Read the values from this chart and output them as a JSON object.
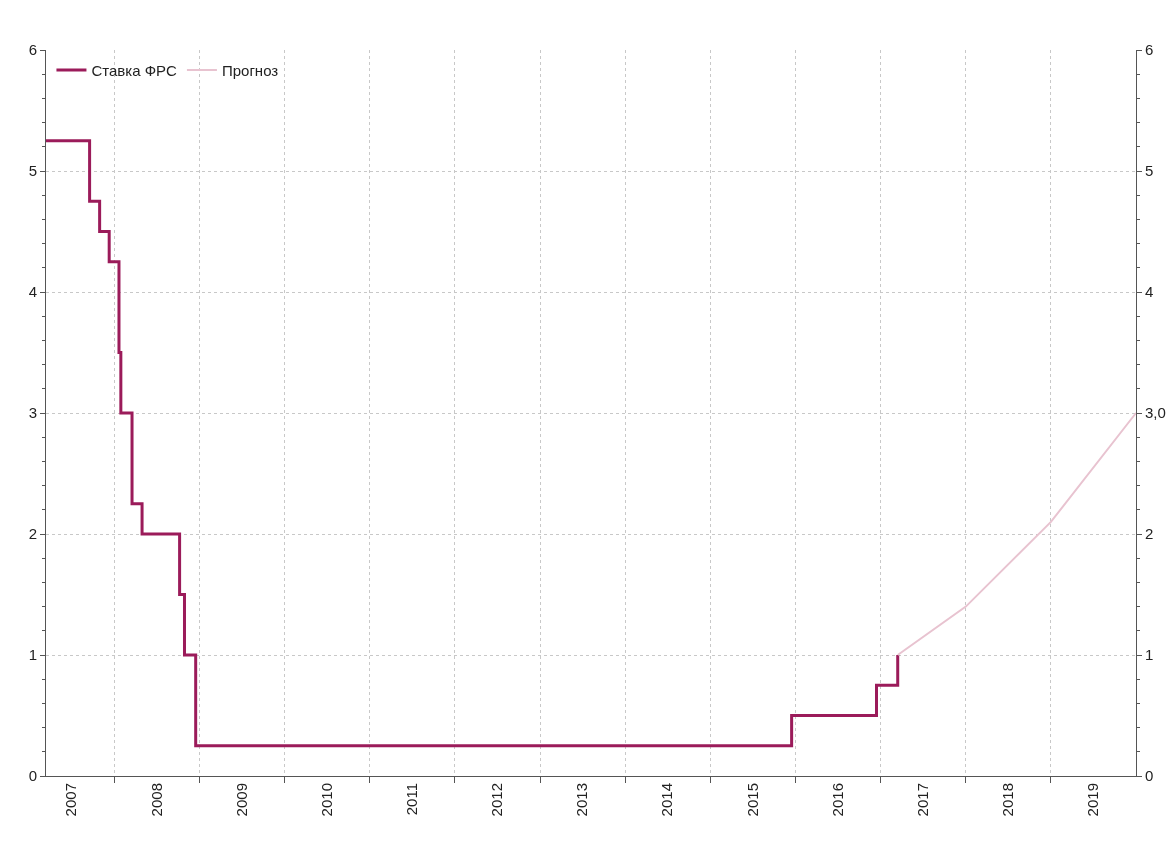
{
  "chart_data": {
    "type": "line",
    "legend": "top left",
    "grid": true,
    "marker": "none",
    "xlim": [
      "2007-03-15",
      "2020-01-01"
    ],
    "xticks": [
      {
        "value": "2007-07-02",
        "label": "2007"
      },
      {
        "value": "2008-07-02",
        "label": "2008"
      },
      {
        "value": "2009-07-02",
        "label": "2009"
      },
      {
        "value": "2010-07-02",
        "label": "2010"
      },
      {
        "value": "2011-07-02",
        "label": "2011"
      },
      {
        "value": "2012-07-02",
        "label": "2012"
      },
      {
        "value": "2013-07-02",
        "label": "2013"
      },
      {
        "value": "2014-07-02",
        "label": "2014"
      },
      {
        "value": "2015-07-02",
        "label": "2015"
      },
      {
        "value": "2016-07-02",
        "label": "2016"
      },
      {
        "value": "2017-07-02",
        "label": "2017"
      },
      {
        "value": "2018-07-02",
        "label": "2018"
      },
      {
        "value": "2019-07-02",
        "label": "2019"
      },
      {
        "value": "2008-01-01",
        "label": null
      },
      {
        "value": "2009-01-01",
        "label": null
      },
      {
        "value": "2010-01-01",
        "label": null
      },
      {
        "value": "2011-01-01",
        "label": null
      },
      {
        "value": "2012-01-01",
        "label": null
      },
      {
        "value": "2013-01-01",
        "label": null
      },
      {
        "value": "2014-01-01",
        "label": null
      },
      {
        "value": "2015-01-01",
        "label": null
      },
      {
        "value": "2016-01-01",
        "label": null
      },
      {
        "value": "2017-01-01",
        "label": null
      },
      {
        "value": "2018-01-01",
        "label": null
      },
      {
        "value": "2019-01-01",
        "label": null
      }
    ],
    "ylim": [
      0,
      6
    ],
    "yticks": [
      0,
      1,
      2,
      3,
      4,
      5,
      6
    ],
    "y2lim": [
      0,
      6
    ],
    "y2ticks": [
      0,
      1,
      2,
      {
        "value": 3,
        "label": "3,0"
      },
      4,
      5,
      6
    ],
    "series": [
      {
        "name": "Ставка ФРС",
        "type": "step",
        "color": "#9b1b5a",
        "x": [
          "2007-03-15",
          "2007-09-18",
          "2007-10-31",
          "2007-12-11",
          "2008-01-22",
          "2008-01-30",
          "2008-03-18",
          "2008-04-30",
          "2008-10-08",
          "2008-10-29",
          "2008-12-16",
          "2015-12-16",
          "2016-12-14",
          "2017-03-15"
        ],
        "values": [
          5.25,
          4.75,
          4.5,
          4.25,
          3.5,
          3.0,
          2.25,
          2.0,
          1.5,
          1.0,
          0.25,
          0.5,
          0.75,
          1.0
        ]
      },
      {
        "name": "Прогноз",
        "type": "line",
        "color": "#e8c3d0",
        "x": [
          "2017-03-15",
          "2018-01-01",
          "2019-01-01",
          "2020-01-01"
        ],
        "values": [
          1.0,
          1.4,
          2.1,
          3.0
        ]
      }
    ]
  }
}
